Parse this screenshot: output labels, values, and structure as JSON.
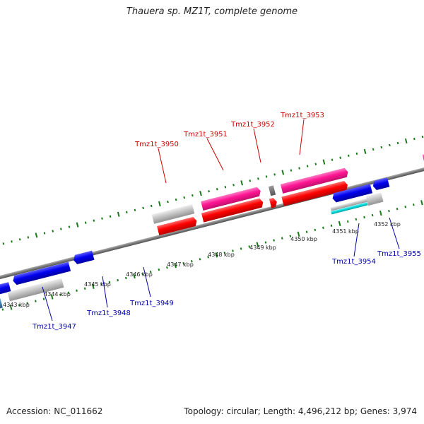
{
  "title": "Thauera sp. MZ1T, complete genome",
  "footer": {
    "accession": "Accession: NC_011662",
    "summary": "Topology: circular; Length: 4,496,212 bp; Genes: 3,974"
  },
  "colors": {
    "forward_label": "#cc0000",
    "reverse_label": "#0000aa",
    "backbone": "#7a7a7a",
    "tick": "#1a7a1a",
    "red_gene": "#ff0000",
    "pink_gene": "#ff1493",
    "blue_gene": "#0000ee",
    "cyan_gene": "#00dddd",
    "steel_gene": "#4682b4",
    "gray_gene": "#c0c0c0"
  },
  "forward_genes": [
    {
      "label": "Tmz1t_3950"
    },
    {
      "label": "Tmz1t_3951"
    },
    {
      "label": "Tmz1t_3952"
    },
    {
      "label": "Tmz1t_3953"
    }
  ],
  "reverse_genes": [
    {
      "label": "Tmz1t_3947"
    },
    {
      "label": "Tmz1t_3948"
    },
    {
      "label": "Tmz1t_3949"
    },
    {
      "label": "Tmz1t_3954"
    },
    {
      "label": "Tmz1t_3955"
    }
  ],
  "kbp_labels": [
    "4343 kbp",
    "4344 kbp",
    "4345 kbp",
    "4346 kbp",
    "4347 kbp",
    "4348 kbp",
    "4349 kbp",
    "4350 kbp",
    "4351 kbp",
    "4352 kbp"
  ]
}
